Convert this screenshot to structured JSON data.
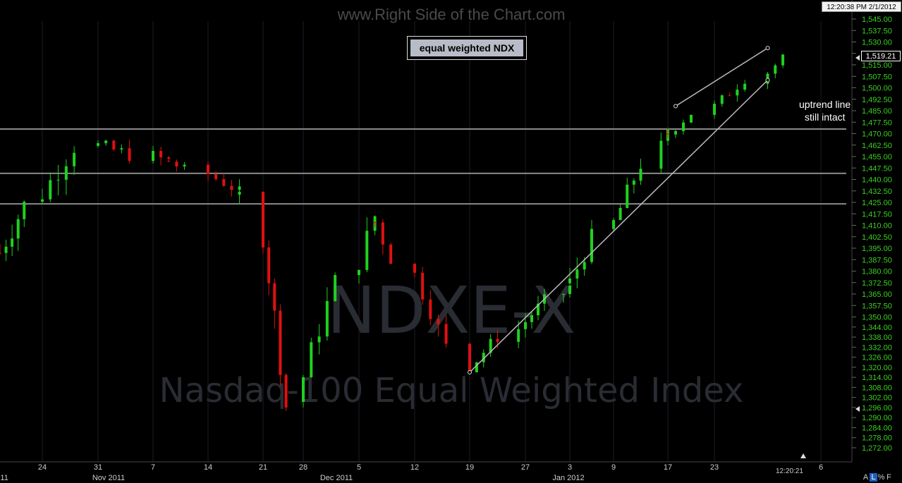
{
  "header": {
    "site_title": "www.Right Side of the Chart.com",
    "timestamp": "12:20:38 PM 2/1/2012",
    "chart_title": "equal weighted NDX"
  },
  "watermark": {
    "symbol": "NDXE-X",
    "name": "Nasdaq-100 Equal Weighted Index"
  },
  "footer": {
    "time": "12:20:21",
    "buttons": [
      "A",
      "L",
      "%",
      "F"
    ]
  },
  "last_price_label": "1,519.21",
  "annotation": {
    "line1": "uptrend line",
    "line2": "still intact"
  },
  "colors": {
    "up": "#1fd11f",
    "down": "#e01010",
    "price_axis": "#39d11f",
    "lines": "#bbbbbb",
    "background": "#000000"
  },
  "chart_data": {
    "type": "candlestick",
    "title": "equal weighted NDX",
    "y_axis": {
      "side": "right",
      "ylim": [
        1266,
        1548
      ],
      "ticks": [
        "1,545.00",
        "1,537.50",
        "1,530.00",
        "1,522.50",
        "1,515.00",
        "1,507.50",
        "1,500.00",
        "1,492.50",
        "1,485.00",
        "1,477.50",
        "1,470.00",
        "1,462.50",
        "1,455.00",
        "1,447.50",
        "1,440.00",
        "1,432.50",
        "1,425.00",
        "1,417.50",
        "1,410.00",
        "1,402.50",
        "1,395.00",
        "1,387.50",
        "1,380.00",
        "1,372.50",
        "1,365.00",
        "1,357.50",
        "1,350.00",
        "1,344.00",
        "1,338.00",
        "1,332.00",
        "1,326.00",
        "1,320.00",
        "1,314.00",
        "1,308.00",
        "1,302.00",
        "1,296.00",
        "1,290.00",
        "1,284.00",
        "1,278.00",
        "1,272.00"
      ]
    },
    "x_axis": {
      "day_ticks": [
        "24",
        "31",
        "7",
        "14",
        "21",
        "28",
        "5",
        "12",
        "19",
        "27",
        "3",
        "9",
        "17",
        "23",
        "6"
      ],
      "month_labels": [
        "2011",
        "Nov 2011",
        "Dec 2011",
        "Jan 2012"
      ]
    },
    "horizontal_levels": [
      1473,
      1444,
      1424
    ],
    "trendlines": [
      {
        "name": "uptrend line",
        "from": [
          "2011-12-19",
          1317
        ],
        "to": [
          "2012-01-30",
          1505
        ]
      },
      {
        "name": "upper channel",
        "from": [
          "2012-01-18",
          1488
        ],
        "to": [
          "2012-01-30",
          1526
        ]
      }
    ],
    "series": [
      {
        "period": "2011-10-17..2011-10-28",
        "start": 1392,
        "end": 1462,
        "low": 1352,
        "high": 1475
      },
      {
        "period": "2011-10-31..2011-11-09",
        "start": 1462,
        "end": 1452,
        "low": 1383,
        "high": 1466
      },
      {
        "period": "2011-11-09..2011-11-18",
        "start": 1452,
        "end": 1432,
        "low": 1392,
        "high": 1453
      },
      {
        "period": "2011-11-18..2011-11-25",
        "start": 1430,
        "end": 1297,
        "low": 1294,
        "high": 1432
      },
      {
        "period": "2011-11-25..2011-12-07",
        "start": 1300,
        "end": 1416,
        "low": 1296,
        "high": 1420
      },
      {
        "period": "2011-12-07..2011-12-19",
        "start": 1412,
        "end": 1320,
        "low": 1317,
        "high": 1414
      },
      {
        "period": "2011-12-19..2012-01-03",
        "start": 1320,
        "end": 1370,
        "low": 1317,
        "high": 1384
      },
      {
        "period": "2012-01-03..2012-01-17",
        "start": 1372,
        "end": 1470,
        "low": 1368,
        "high": 1473
      },
      {
        "period": "2012-01-17..2012-02-01",
        "start": 1470,
        "end": 1519.21,
        "low": 1466,
        "high": 1522
      }
    ]
  }
}
